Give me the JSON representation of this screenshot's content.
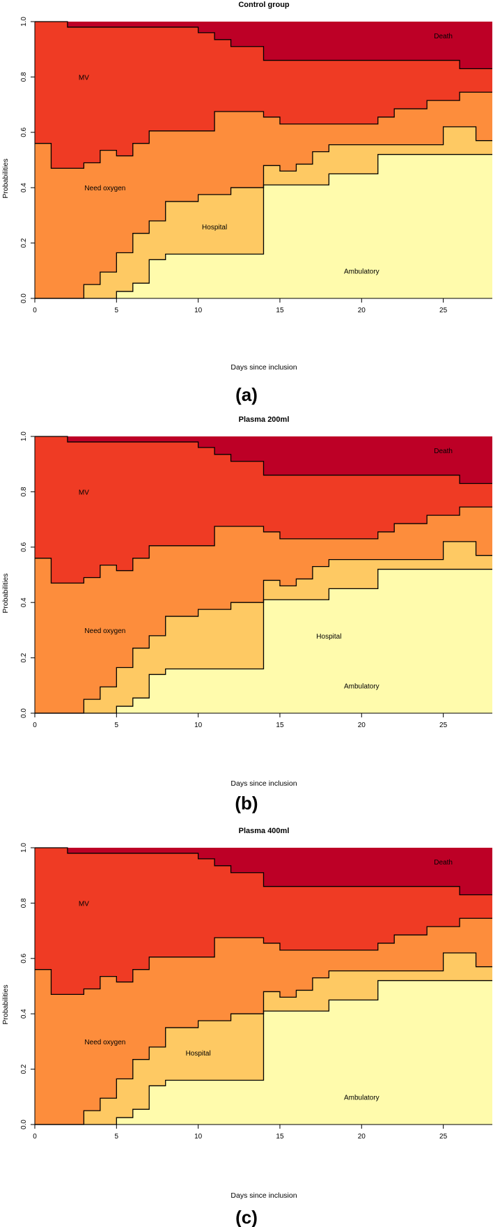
{
  "chart_data": [
    {
      "type": "area",
      "title": "Control group",
      "xlabel": "Days since inclusion",
      "ylabel": "Probabilities",
      "panel_label": "(a)",
      "xlim": [
        0,
        28
      ],
      "ylim": [
        0,
        1
      ],
      "xticks": [
        "0",
        "5",
        "10",
        "15",
        "20",
        "25"
      ],
      "yticks": [
        "0.0",
        "0.2",
        "0.4",
        "0.6",
        "0.8",
        "1.0"
      ],
      "states": [
        {
          "name": "Ambulatory",
          "label_at": [
            20,
            0.1
          ]
        },
        {
          "name": "Hospital",
          "label_at": [
            11,
            0.26
          ]
        },
        {
          "name": "Need oxygen",
          "label_at": [
            4.3,
            0.4
          ]
        },
        {
          "name": "MV",
          "label_at": [
            3,
            0.8
          ]
        },
        {
          "name": "Death",
          "label_at": [
            25,
            0.95
          ]
        }
      ]
    },
    {
      "type": "area",
      "title": "Plasma 200ml",
      "xlabel": "Days since inclusion",
      "ylabel": "Probabilities",
      "panel_label": "(b)",
      "xlim": [
        0,
        28
      ],
      "ylim": [
        0,
        1
      ],
      "xticks": [
        "0",
        "5",
        "10",
        "15",
        "20",
        "25"
      ],
      "yticks": [
        "0.0",
        "0.2",
        "0.4",
        "0.6",
        "0.8",
        "1.0"
      ],
      "states": [
        {
          "name": "Ambulatory",
          "label_at": [
            20,
            0.1
          ]
        },
        {
          "name": "Hospital",
          "label_at": [
            18,
            0.28
          ]
        },
        {
          "name": "Need oxygen",
          "label_at": [
            4.3,
            0.3
          ]
        },
        {
          "name": "MV",
          "label_at": [
            3,
            0.8
          ]
        },
        {
          "name": "Death",
          "label_at": [
            25,
            0.95
          ]
        }
      ]
    },
    {
      "type": "area",
      "title": "Plasma 400ml",
      "xlabel": "Days since inclusion",
      "ylabel": "Probabilities",
      "panel_label": "(c)",
      "xlim": [
        0,
        28
      ],
      "ylim": [
        0,
        1
      ],
      "xticks": [
        "0",
        "5",
        "10",
        "15",
        "20",
        "25"
      ],
      "yticks": [
        "0.0",
        "0.2",
        "0.4",
        "0.6",
        "0.8",
        "1.0"
      ],
      "states": [
        {
          "name": "Ambulatory",
          "label_at": [
            20,
            0.1
          ]
        },
        {
          "name": "Hospital",
          "label_at": [
            10,
            0.26
          ]
        },
        {
          "name": "Need oxygen",
          "label_at": [
            4.3,
            0.3
          ]
        },
        {
          "name": "MV",
          "label_at": [
            3,
            0.8
          ]
        },
        {
          "name": "Death",
          "label_at": [
            25,
            0.95
          ]
        }
      ]
    }
  ],
  "boundaries": {
    "ambulatory_upper": [
      [
        0,
        0
      ],
      [
        5,
        0
      ],
      [
        5,
        0.025
      ],
      [
        6,
        0.025
      ],
      [
        6,
        0.055
      ],
      [
        7,
        0.055
      ],
      [
        7,
        0.14
      ],
      [
        8,
        0.14
      ],
      [
        8,
        0.16
      ],
      [
        14,
        0.16
      ],
      [
        14,
        0.41
      ],
      [
        18,
        0.41
      ],
      [
        18,
        0.45
      ],
      [
        21,
        0.45
      ],
      [
        21,
        0.52
      ],
      [
        28,
        0.52
      ]
    ],
    "hospital_upper": [
      [
        0,
        0
      ],
      [
        3,
        0
      ],
      [
        3,
        0.05
      ],
      [
        4,
        0.05
      ],
      [
        4,
        0.095
      ],
      [
        5,
        0.095
      ],
      [
        5,
        0.165
      ],
      [
        6,
        0.165
      ],
      [
        6,
        0.235
      ],
      [
        7,
        0.235
      ],
      [
        7,
        0.28
      ],
      [
        8,
        0.28
      ],
      [
        8,
        0.35
      ],
      [
        10,
        0.35
      ],
      [
        10,
        0.375
      ],
      [
        12,
        0.375
      ],
      [
        12,
        0.4
      ],
      [
        14,
        0.4
      ],
      [
        14,
        0.48
      ],
      [
        15,
        0.48
      ],
      [
        15,
        0.46
      ],
      [
        16,
        0.46
      ],
      [
        16,
        0.485
      ],
      [
        17,
        0.485
      ],
      [
        17,
        0.53
      ],
      [
        18,
        0.53
      ],
      [
        18,
        0.555
      ],
      [
        25,
        0.555
      ],
      [
        25,
        0.62
      ],
      [
        27,
        0.62
      ],
      [
        27,
        0.57
      ],
      [
        28,
        0.57
      ]
    ],
    "oxygen_upper": [
      [
        0,
        0.56
      ],
      [
        1,
        0.56
      ],
      [
        1,
        0.47
      ],
      [
        3,
        0.47
      ],
      [
        3,
        0.49
      ],
      [
        4,
        0.49
      ],
      [
        4,
        0.535
      ],
      [
        5,
        0.535
      ],
      [
        5,
        0.515
      ],
      [
        6,
        0.515
      ],
      [
        6,
        0.56
      ],
      [
        7,
        0.56
      ],
      [
        7,
        0.605
      ],
      [
        11,
        0.605
      ],
      [
        11,
        0.675
      ],
      [
        14,
        0.675
      ],
      [
        14,
        0.655
      ],
      [
        15,
        0.655
      ],
      [
        15,
        0.63
      ],
      [
        21,
        0.63
      ],
      [
        21,
        0.655
      ],
      [
        22,
        0.655
      ],
      [
        22,
        0.685
      ],
      [
        24,
        0.685
      ],
      [
        24,
        0.715
      ],
      [
        26,
        0.715
      ],
      [
        26,
        0.745
      ],
      [
        28,
        0.745
      ]
    ],
    "mv_upper": [
      [
        0,
        1
      ],
      [
        2,
        1
      ],
      [
        2,
        0.98
      ],
      [
        10,
        0.98
      ],
      [
        10,
        0.96
      ],
      [
        11,
        0.96
      ],
      [
        11,
        0.935
      ],
      [
        12,
        0.935
      ],
      [
        12,
        0.91
      ],
      [
        14,
        0.91
      ],
      [
        14,
        0.86
      ],
      [
        26,
        0.86
      ],
      [
        26,
        0.83
      ],
      [
        28,
        0.83
      ]
    ]
  },
  "colors": {
    "ambulatory": "#FFFBAC",
    "hospital": "#FEC963",
    "oxygen": "#FD8D3C",
    "mv": "#EF3B24",
    "death": "#BD0026",
    "line": "#000000"
  }
}
